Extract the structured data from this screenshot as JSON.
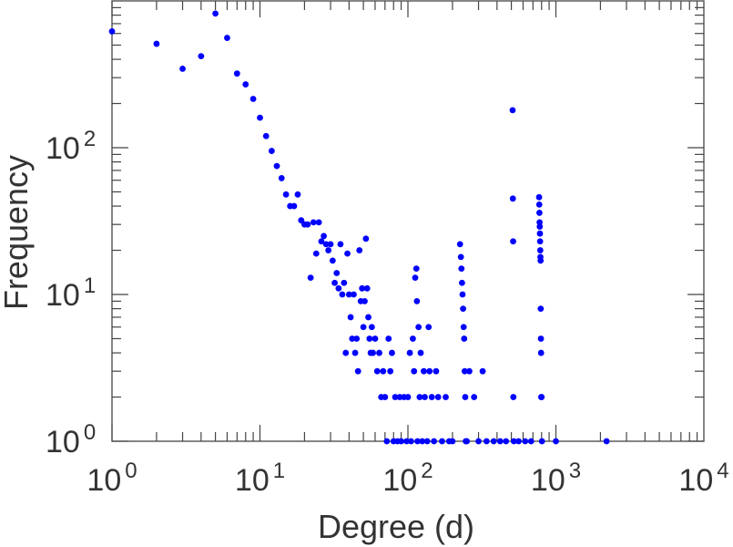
{
  "chart_data": {
    "type": "scatter",
    "xlabel": "Degree (d)",
    "ylabel": "Frequency",
    "xscale": "log",
    "yscale": "log",
    "xlim": [
      1,
      10000
    ],
    "ylim": [
      1,
      1000
    ],
    "grid": false,
    "legend": "none",
    "marker_color": "#0000ff",
    "x_tick_labels": [
      {
        "base": "10",
        "exp": "0"
      },
      {
        "base": "10",
        "exp": "1"
      },
      {
        "base": "10",
        "exp": "2"
      },
      {
        "base": "10",
        "exp": "3"
      },
      {
        "base": "10",
        "exp": "4"
      }
    ],
    "y_tick_labels": [
      {
        "base": "10",
        "exp": "0"
      },
      {
        "base": "10",
        "exp": "1"
      },
      {
        "base": "10",
        "exp": "2"
      }
    ],
    "points": [
      [
        1,
        620
      ],
      [
        2,
        510
      ],
      [
        3,
        345
      ],
      [
        4,
        420
      ],
      [
        5,
        820
      ],
      [
        6,
        560
      ],
      [
        7,
        320
      ],
      [
        8,
        270
      ],
      [
        9,
        215
      ],
      [
        10,
        160
      ],
      [
        11,
        120
      ],
      [
        12,
        95
      ],
      [
        13,
        75
      ],
      [
        14,
        62
      ],
      [
        15,
        48
      ],
      [
        16,
        40
      ],
      [
        17,
        40
      ],
      [
        18,
        48
      ],
      [
        19,
        32
      ],
      [
        20,
        30
      ],
      [
        21,
        30
      ],
      [
        22,
        13
      ],
      [
        23,
        31
      ],
      [
        24,
        19
      ],
      [
        25,
        31
      ],
      [
        26,
        23
      ],
      [
        27,
        25
      ],
      [
        28,
        22
      ],
      [
        29,
        20
      ],
      [
        30,
        22
      ],
      [
        31,
        17
      ],
      [
        32,
        12
      ],
      [
        33,
        14
      ],
      [
        34,
        11
      ],
      [
        35,
        22
      ],
      [
        36,
        10
      ],
      [
        37,
        12
      ],
      [
        38,
        4
      ],
      [
        39,
        19
      ],
      [
        40,
        10
      ],
      [
        41,
        7
      ],
      [
        42,
        5
      ],
      [
        43,
        10
      ],
      [
        44,
        4
      ],
      [
        45,
        5
      ],
      [
        46,
        3
      ],
      [
        47,
        20
      ],
      [
        48,
        9
      ],
      [
        49,
        11
      ],
      [
        50,
        6
      ],
      [
        51,
        9
      ],
      [
        52,
        24
      ],
      [
        53,
        11
      ],
      [
        54,
        7
      ],
      [
        55,
        5
      ],
      [
        56,
        4
      ],
      [
        57,
        6
      ],
      [
        58,
        4
      ],
      [
        60,
        5
      ],
      [
        62,
        3
      ],
      [
        64,
        4
      ],
      [
        66,
        2
      ],
      [
        68,
        3
      ],
      [
        70,
        2
      ],
      [
        72,
        1
      ],
      [
        74,
        5
      ],
      [
        76,
        3
      ],
      [
        78,
        4
      ],
      [
        80,
        1
      ],
      [
        82,
        2
      ],
      [
        85,
        1
      ],
      [
        88,
        2
      ],
      [
        90,
        1
      ],
      [
        94,
        2
      ],
      [
        98,
        1
      ],
      [
        100,
        2
      ],
      [
        103,
        4
      ],
      [
        105,
        1
      ],
      [
        108,
        5
      ],
      [
        110,
        3
      ],
      [
        112,
        13
      ],
      [
        114,
        15
      ],
      [
        115,
        9
      ],
      [
        116,
        1
      ],
      [
        118,
        6
      ],
      [
        120,
        2
      ],
      [
        122,
        4
      ],
      [
        125,
        1
      ],
      [
        128,
        3
      ],
      [
        130,
        2
      ],
      [
        135,
        1
      ],
      [
        138,
        6
      ],
      [
        140,
        3
      ],
      [
        145,
        2
      ],
      [
        150,
        1
      ],
      [
        155,
        3
      ],
      [
        160,
        2
      ],
      [
        170,
        1
      ],
      [
        180,
        2
      ],
      [
        190,
        1
      ],
      [
        200,
        1
      ],
      [
        225,
        22
      ],
      [
        228,
        18
      ],
      [
        230,
        15
      ],
      [
        232,
        12
      ],
      [
        234,
        10
      ],
      [
        236,
        8
      ],
      [
        238,
        6
      ],
      [
        240,
        5
      ],
      [
        242,
        3
      ],
      [
        244,
        2
      ],
      [
        246,
        1
      ],
      [
        250,
        1
      ],
      [
        260,
        3
      ],
      [
        280,
        2
      ],
      [
        300,
        1
      ],
      [
        320,
        3
      ],
      [
        340,
        1
      ],
      [
        380,
        1
      ],
      [
        420,
        1
      ],
      [
        460,
        1
      ],
      [
        510,
        180
      ],
      [
        512,
        45
      ],
      [
        514,
        23
      ],
      [
        516,
        2
      ],
      [
        520,
        1
      ],
      [
        560,
        1
      ],
      [
        620,
        1
      ],
      [
        680,
        1
      ],
      [
        770,
        46
      ],
      [
        772,
        41
      ],
      [
        774,
        36
      ],
      [
        776,
        31
      ],
      [
        778,
        29
      ],
      [
        780,
        26
      ],
      [
        782,
        23
      ],
      [
        784,
        20
      ],
      [
        786,
        18
      ],
      [
        788,
        17
      ],
      [
        790,
        8
      ],
      [
        792,
        5
      ],
      [
        794,
        4
      ],
      [
        796,
        2
      ],
      [
        800,
        2
      ],
      [
        805,
        1
      ],
      [
        1000,
        1
      ],
      [
        2200,
        1
      ]
    ]
  }
}
